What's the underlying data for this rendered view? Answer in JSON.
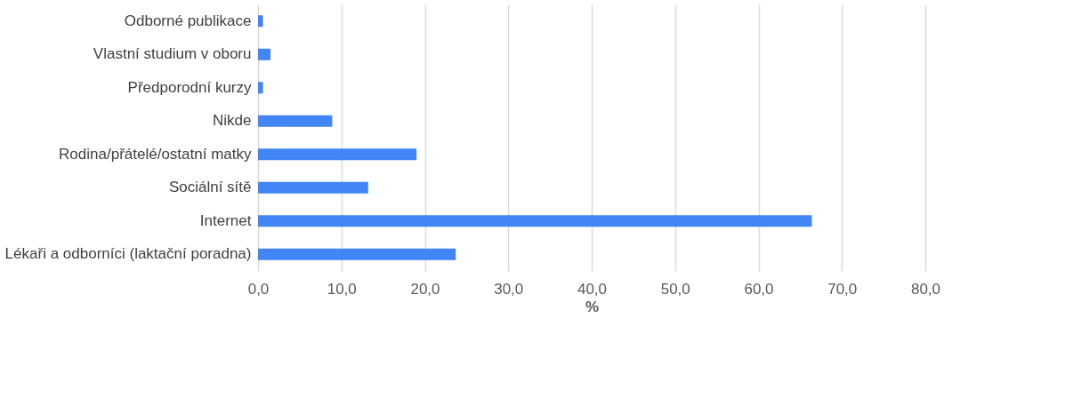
{
  "chart_data": {
    "type": "bar",
    "orientation": "horizontal",
    "xlabel": "%",
    "categories": [
      "Odborné publikace",
      "Vlastní studium v oboru",
      "Předporodní kurzy",
      "Nikde",
      "Rodina/přátelé/ostatní matky",
      "Sociální sítě",
      "Internet",
      "Lékaři a odborníci (laktační poradna)"
    ],
    "values": [
      0.6,
      1.5,
      0.6,
      8.9,
      19.0,
      13.2,
      66.4,
      23.7
    ],
    "color": "#4285f4",
    "xlim": [
      0,
      80
    ],
    "xticks": [
      {
        "value": 0,
        "label": "0,0"
      },
      {
        "value": 10,
        "label": "10,0"
      },
      {
        "value": 20,
        "label": "20,0"
      },
      {
        "value": 30,
        "label": "30,0"
      },
      {
        "value": 40,
        "label": "40,0"
      },
      {
        "value": 50,
        "label": "50,0"
      },
      {
        "value": 60,
        "label": "60,0"
      },
      {
        "value": 70,
        "label": "70,0"
      },
      {
        "value": 80,
        "label": "80,0"
      }
    ],
    "grid": "x"
  }
}
